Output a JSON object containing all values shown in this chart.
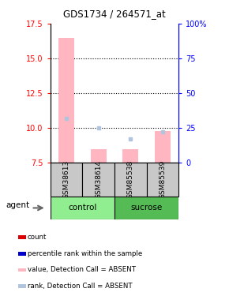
{
  "title": "GDS1734 / 264571_at",
  "samples": [
    "GSM38613",
    "GSM38614",
    "GSM85538",
    "GSM85539"
  ],
  "groups": [
    "control",
    "control",
    "sucrose",
    "sucrose"
  ],
  "ylim_left": [
    7.5,
    17.5
  ],
  "ylim_right": [
    0,
    100
  ],
  "yticks_left": [
    7.5,
    10,
    12.5,
    15,
    17.5
  ],
  "yticks_right": [
    0,
    25,
    50,
    75,
    100
  ],
  "ytick_labels_right": [
    "0",
    "25",
    "50",
    "75",
    "100%"
  ],
  "bar_bottom": 7.5,
  "absent_value_bars": {
    "GSM38613": 16.5,
    "GSM38614": 8.5,
    "GSM85538": 8.5,
    "GSM85539": 9.8
  },
  "absent_rank_dots": {
    "GSM38613": 10.7,
    "GSM38614": 10.0,
    "GSM85538": 9.2,
    "GSM85539": 9.7
  },
  "bar_color_absent": "#FFB6C1",
  "dot_color_absent": "#B0C4DE",
  "bar_width": 0.5,
  "grid_lines": [
    10,
    12.5,
    15
  ],
  "control_color": "#90EE90",
  "sucrose_color": "#55BB55",
  "gray_color": "#C8C8C8",
  "legend_items": [
    {
      "color": "#DD0000",
      "label": "count"
    },
    {
      "color": "#0000CC",
      "label": "percentile rank within the sample"
    },
    {
      "color": "#FFB6C1",
      "label": "value, Detection Call = ABSENT"
    },
    {
      "color": "#B0C4DE",
      "label": "rank, Detection Call = ABSENT"
    }
  ]
}
